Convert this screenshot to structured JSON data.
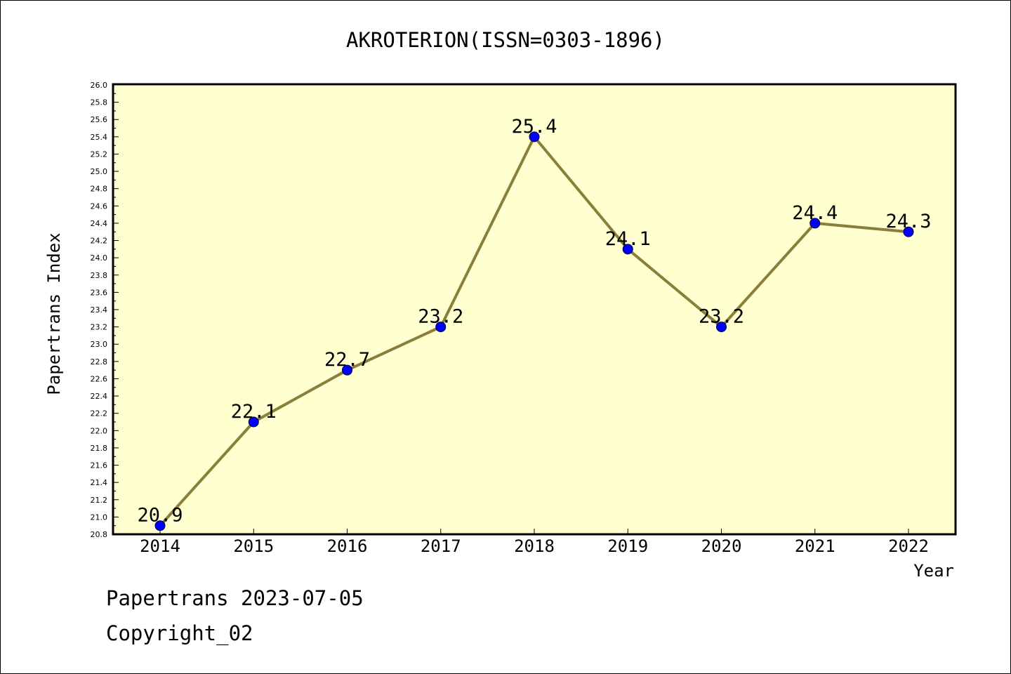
{
  "chart_data": {
    "type": "line",
    "title": "AKROTERION(ISSN=0303-1896)",
    "xlabel": "Year",
    "ylabel": "Papertrans Index",
    "categories": [
      "2014",
      "2015",
      "2016",
      "2017",
      "2018",
      "2019",
      "2020",
      "2021",
      "2022"
    ],
    "series": [
      {
        "values": [
          20.9,
          22.1,
          22.7,
          23.2,
          25.4,
          24.1,
          23.2,
          24.4,
          24.3
        ],
        "data_labels": [
          "20.9",
          "22.1",
          "22.7",
          "23.2",
          "25.4",
          "24.1",
          "23.2",
          "24.4",
          "24.3"
        ],
        "line_color": "#8b7d3a",
        "marker_color": "#0000ff"
      }
    ],
    "ylim": [
      20.8,
      26.0
    ],
    "ytick_step": 0.2,
    "grid": false,
    "plot_background": "#ffffd0"
  },
  "footer": {
    "line1": "Papertrans 2023-07-05",
    "line2": "Copyright_02"
  }
}
